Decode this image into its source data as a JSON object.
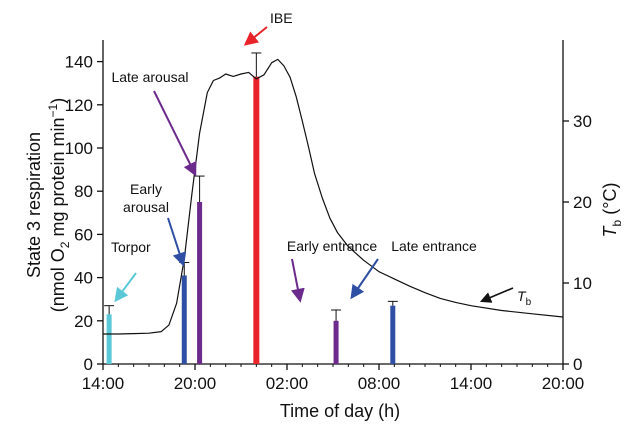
{
  "chart_data": {
    "type": "bar",
    "xlabel": "Time of day (h)",
    "x_ticks": [
      "14:00",
      "20:00",
      "02:00",
      "08:00",
      "14:00",
      "20:00"
    ],
    "x_tick_hours": [
      0,
      6,
      12,
      18,
      24,
      30
    ],
    "xlim": [
      0,
      30
    ],
    "ylabel_left_line1": "State 3 respiration",
    "ylabel_left_line2_parts": [
      "(nmol O",
      "2",
      " mg protein min",
      "−1",
      ")"
    ],
    "ylim_left": [
      0,
      150
    ],
    "y_ticks_left": [
      0,
      20,
      40,
      60,
      80,
      100,
      120,
      140
    ],
    "ylabel_right_main": "T",
    "ylabel_right_sub": "b",
    "ylabel_right_unit": " (°C)",
    "ylim_right": [
      0,
      40
    ],
    "y_ticks_right": [
      0,
      10,
      20,
      30
    ],
    "bars": [
      {
        "label": "Torpor",
        "hour": 0.4,
        "value": 23,
        "error": 4,
        "color": "#5bc8d8"
      },
      {
        "label": "Early arousal",
        "hour": 5.3,
        "value": 41,
        "error": 6,
        "color": "#2e4fa3"
      },
      {
        "label": "Late arousal",
        "hour": 6.3,
        "value": 75,
        "error": 12,
        "color": "#6b2a8c"
      },
      {
        "label": "IBE",
        "hour": 10.0,
        "value": 133,
        "error": 11,
        "color": "#e8232a"
      },
      {
        "label": "Early entrance",
        "hour": 15.2,
        "value": 20,
        "error": 5,
        "color": "#6b2a8c"
      },
      {
        "label": "Late entrance",
        "hour": 18.9,
        "value": 27,
        "error": 2,
        "color": "#2e4fa3"
      }
    ],
    "tb_line": {
      "name_main": "T",
      "name_sub": "b",
      "hours": [
        0,
        1,
        2,
        3,
        3.8,
        4.3,
        4.8,
        5.3,
        5.8,
        6.3,
        6.8,
        7.2,
        7.6,
        8.0,
        8.5,
        9.0,
        9.5,
        10.0,
        10.5,
        11.0,
        11.4,
        11.8,
        12.2,
        12.6,
        13.0,
        13.4,
        13.8,
        14.3,
        14.8,
        15.3,
        16,
        17,
        18,
        19,
        20,
        21,
        22,
        23,
        24,
        26,
        28,
        30
      ],
      "temps_c": [
        3.7,
        3.7,
        3.75,
        3.8,
        4.0,
        4.8,
        7.5,
        13.0,
        21.0,
        28.5,
        33.5,
        35.0,
        35.3,
        35.8,
        35.5,
        35.8,
        36.0,
        35.2,
        35.7,
        37.2,
        37.6,
        36.8,
        35.4,
        33.0,
        30.0,
        26.8,
        23.5,
        20.5,
        18.0,
        16.2,
        14.5,
        12.8,
        11.4,
        10.5,
        9.6,
        8.8,
        8.1,
        7.6,
        7.2,
        6.6,
        6.2,
        5.8
      ]
    },
    "annotations": [
      {
        "name": "torpor",
        "lines": [
          "Torpor"
        ],
        "color": "#5bc8d8"
      },
      {
        "name": "early-arousal",
        "lines": [
          "Early",
          "arousal"
        ],
        "color": "#2e4fa3"
      },
      {
        "name": "late-arousal",
        "lines": [
          "Late arousal"
        ],
        "color": "#6b2a8c"
      },
      {
        "name": "ibe",
        "lines": [
          "IBE"
        ],
        "color": "#e8232a"
      },
      {
        "name": "early-entrance",
        "lines": [
          "Early entrance"
        ],
        "color": "#6b2a8c"
      },
      {
        "name": "late-entrance",
        "lines": [
          "Late entrance"
        ],
        "color": "#2e4fa3"
      }
    ],
    "grid": false
  }
}
